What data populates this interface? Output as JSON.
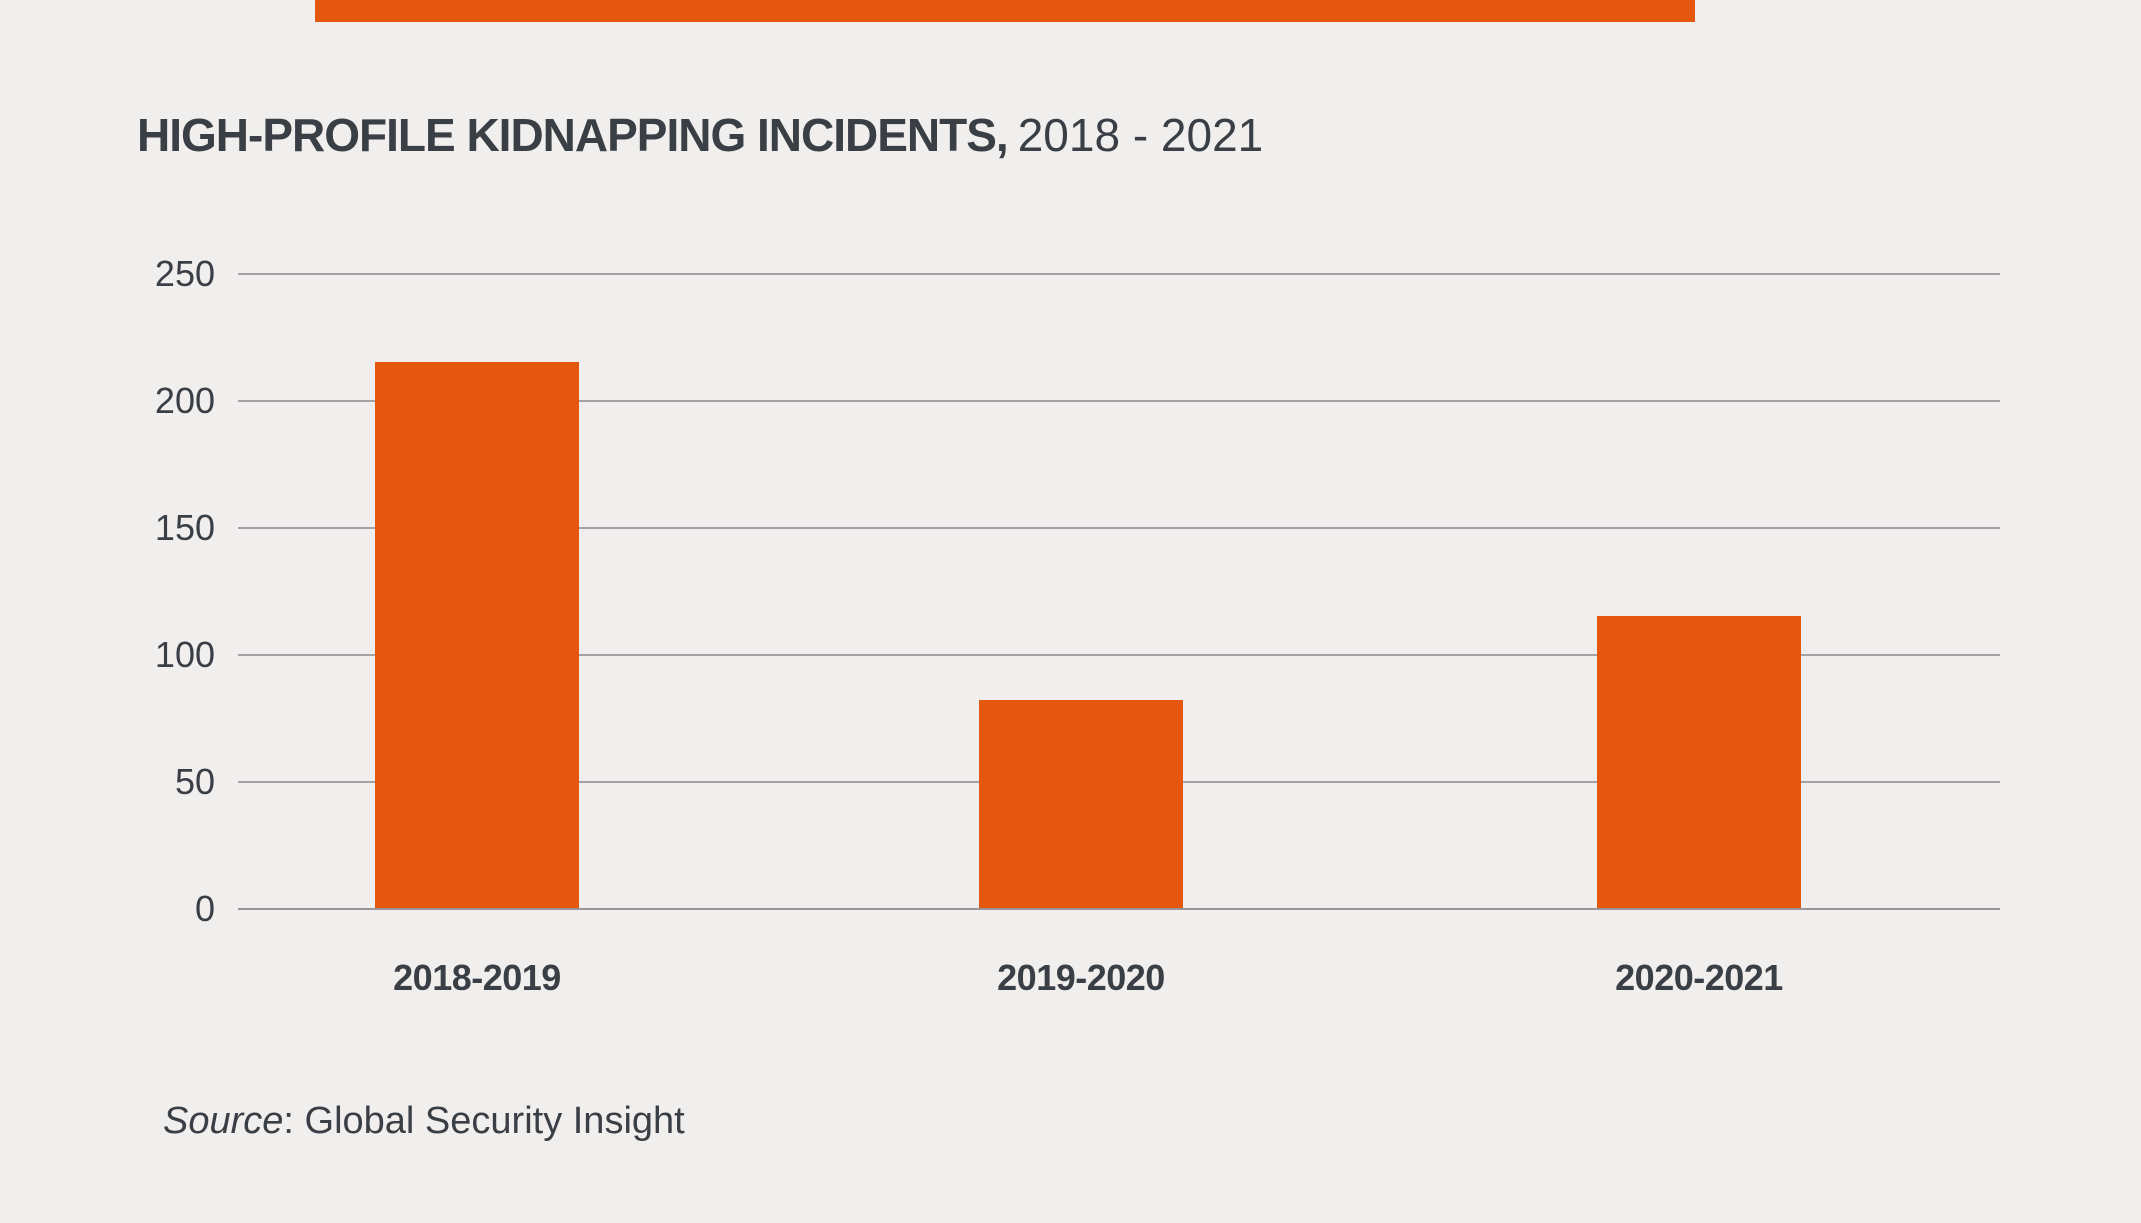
{
  "accent": {
    "color": "#e5570e"
  },
  "title": {
    "bold_part": "HIGH-PROFILE KIDNAPPING INCIDENTS,",
    "regular_part": "2018 - 2021"
  },
  "chart_data": {
    "type": "bar",
    "title": "HIGH-PROFILE KIDNAPPING INCIDENTS, 2018 - 2021",
    "categories": [
      "2018-2019",
      "2019-2020",
      "2020-2021"
    ],
    "values": [
      215,
      82,
      115
    ],
    "xlabel": "",
    "ylabel": "",
    "ylim": [
      0,
      250
    ],
    "yticks": [
      0,
      50,
      100,
      150,
      200,
      250
    ],
    "bar_color": "#e5570e",
    "grid": true,
    "gridline_color": "#a5a2a6",
    "background_color": "#f0efed",
    "text_color": "#3a3f46",
    "legend": false
  },
  "source": {
    "italic_part": "Source",
    "regular_part": ": Global Security Insight"
  }
}
